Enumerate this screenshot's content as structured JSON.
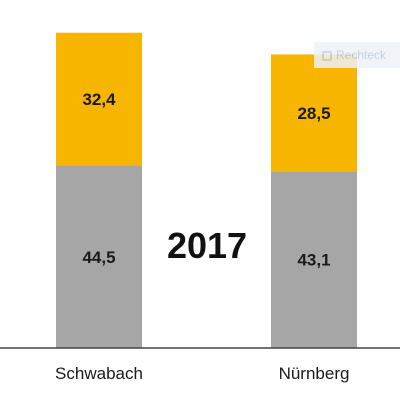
{
  "chart_data": {
    "type": "bar",
    "stacked": true,
    "year_label": "2017",
    "categories": [
      "Schwabach",
      "Nürnberg"
    ],
    "series": [
      {
        "values": [
          44.5,
          43.1
        ],
        "labels": [
          "44,5",
          "43,1"
        ],
        "color": "#a6a6a6"
      },
      {
        "values": [
          32.4,
          28.5
        ],
        "labels": [
          "32,4",
          "28,5"
        ],
        "color": "#f7b500"
      }
    ],
    "ylim": [
      0,
      76.9
    ],
    "grid": false,
    "legend": "none"
  },
  "watermark": {
    "text": "Rechteck",
    "icon": "rectangle-icon"
  }
}
